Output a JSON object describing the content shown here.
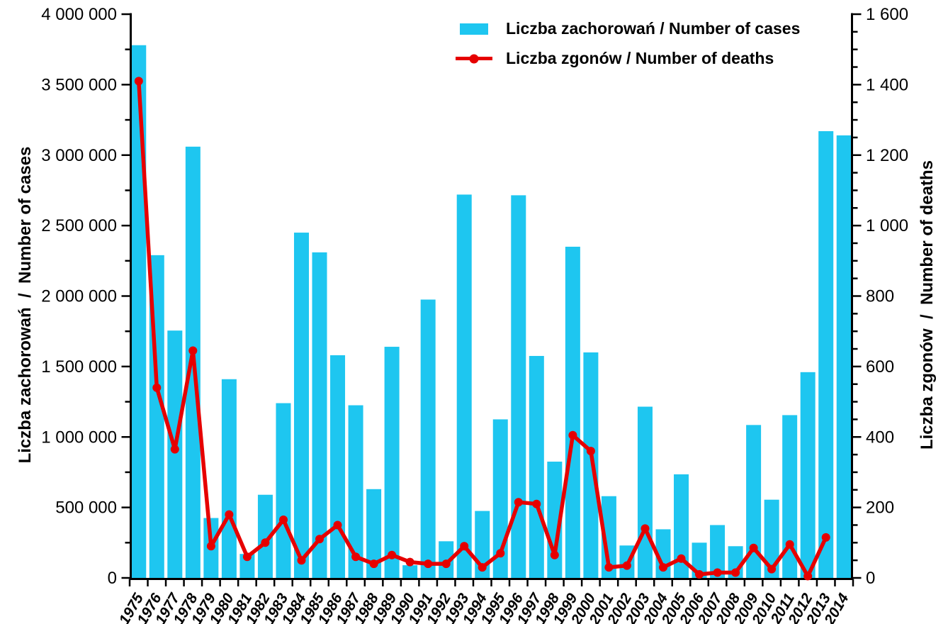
{
  "chart_data": {
    "type": "bar",
    "x": [
      "1975",
      "1976",
      "1977",
      "1978",
      "1979",
      "1980",
      "1981",
      "1982",
      "1983",
      "1984",
      "1985",
      "1986",
      "1987",
      "1988",
      "1989",
      "1990",
      "1991",
      "1992",
      "1993",
      "1994",
      "1995",
      "1996",
      "1997",
      "1998",
      "1999",
      "2000",
      "2001",
      "2002",
      "2003",
      "2004",
      "2005",
      "2006",
      "2007",
      "2008",
      "2009",
      "2010",
      "2011",
      "2012",
      "2013",
      "2014"
    ],
    "series": [
      {
        "name": "Liczba zachorowań / Number of cases",
        "type": "bar",
        "axis": "left",
        "color": "#1EC6F0",
        "values": [
          3780000,
          2290000,
          1755000,
          3060000,
          425000,
          1410000,
          170000,
          590000,
          1240000,
          2450000,
          2310000,
          1580000,
          1225000,
          630000,
          1640000,
          90000,
          1975000,
          260000,
          2720000,
          475000,
          1125000,
          2715000,
          1575000,
          825000,
          2350000,
          1600000,
          580000,
          230000,
          1215000,
          345000,
          735000,
          250000,
          375000,
          225000,
          1085000,
          555000,
          1155000,
          1460000,
          3170000,
          3140000
        ]
      },
      {
        "name": "Liczba zgonów / Number of deaths",
        "type": "line",
        "axis": "right",
        "color": "#E60000",
        "values": [
          1410,
          540,
          365,
          645,
          90,
          180,
          60,
          100,
          165,
          50,
          110,
          150,
          60,
          40,
          65,
          45,
          40,
          40,
          90,
          30,
          70,
          215,
          210,
          65,
          405,
          360,
          30,
          35,
          140,
          30,
          55,
          10,
          15,
          15,
          85,
          25,
          95,
          5,
          115,
          null
        ]
      }
    ],
    "left_axis": {
      "title": "Liczba zachorowań  /  Number of cases",
      "range": [
        0,
        4000000
      ],
      "major_step": 500000,
      "minor_step": 250000,
      "tick_labels": [
        "0",
        "500 000",
        "1 000 000",
        "1 500 000",
        "2 000 000",
        "2 500 000",
        "3 000 000",
        "3 500 000",
        "4 000 000"
      ]
    },
    "right_axis": {
      "title": "Liczba zgonów  /  Number of deaths",
      "range": [
        0,
        1600
      ],
      "major_step": 200,
      "minor_step": 50,
      "tick_labels": [
        "0",
        "200",
        "400",
        "600",
        "800",
        "1 000",
        "1 200",
        "1 400",
        "1 600"
      ]
    },
    "legend": {
      "position": "top-center",
      "items": [
        {
          "label": "Liczba zachorowań / Number of cases",
          "marker": "bar-swatch"
        },
        {
          "label": "Liczba zgonów / Number of deaths",
          "marker": "line-with-dot"
        }
      ]
    },
    "grid": false,
    "title": ""
  }
}
